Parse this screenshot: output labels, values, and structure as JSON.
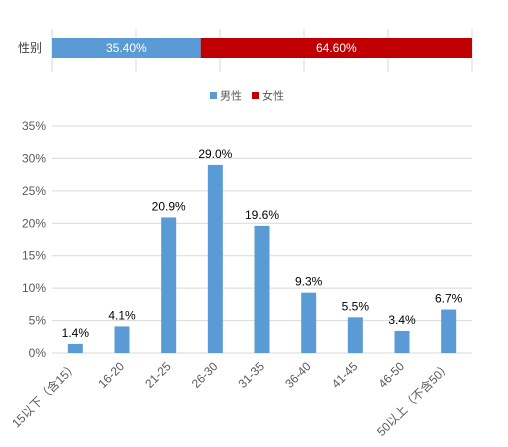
{
  "chart_data": [
    {
      "type": "bar",
      "orientation": "horizontal-stacked",
      "categories": [
        "性别"
      ],
      "series": [
        {
          "name": "男性",
          "values": [
            35.4
          ],
          "label": "35.40%",
          "color": "#5B9BD5"
        },
        {
          "name": "女性",
          "values": [
            64.6
          ],
          "label": "64.60%",
          "color": "#C00000"
        }
      ],
      "xlim": [
        0,
        100
      ],
      "legend": "bottom-center"
    },
    {
      "type": "bar",
      "categories": [
        "15以下（含15）",
        "16-20",
        "21-25",
        "26-30",
        "31-35",
        "36-40",
        "41-45",
        "46-50",
        "50以上（不含50）"
      ],
      "values": [
        1.4,
        4.1,
        20.9,
        29.0,
        19.6,
        9.3,
        5.5,
        3.4,
        6.7
      ],
      "data_labels": [
        "1.4%",
        "4.1%",
        "20.9%",
        "29.0%",
        "19.6%",
        "9.3%",
        "5.5%",
        "3.4%",
        "6.7%"
      ],
      "ylim": [
        0,
        35
      ],
      "yticks": [
        "0%",
        "5%",
        "10%",
        "15%",
        "20%",
        "25%",
        "30%",
        "35%"
      ],
      "grid": true,
      "color": "#5B9BD5"
    }
  ]
}
